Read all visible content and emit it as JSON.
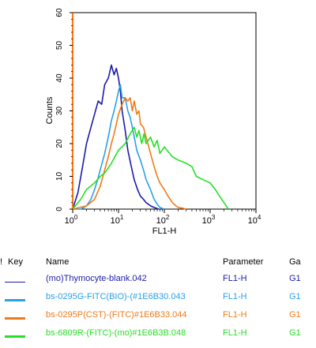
{
  "chart_data": {
    "type": "line",
    "title": "",
    "xlabel": "FL1-H",
    "ylabel": "Counts",
    "x_scale": "log",
    "xlim": [
      1,
      10000
    ],
    "ylim": [
      0,
      60
    ],
    "x_ticks": [
      1,
      10,
      100,
      1000,
      10000
    ],
    "x_tick_labels": [
      {
        "base": "10",
        "exp": "0"
      },
      {
        "base": "10",
        "exp": "1"
      },
      {
        "base": "10",
        "exp": "2"
      },
      {
        "base": "10",
        "exp": "3"
      },
      {
        "base": "10",
        "exp": "4"
      }
    ],
    "y_ticks": [
      "0",
      "10",
      "20",
      "30",
      "40",
      "50",
      "60"
    ],
    "grid": false,
    "series": [
      {
        "name": "(mo)Thymocyte-blank.042",
        "color": "#1c1ca8",
        "x": [
          1,
          1,
          1.3,
          1.6,
          2,
          2.5,
          3,
          3.6,
          4.3,
          5,
          6,
          7,
          8,
          9,
          10,
          11,
          12,
          14,
          16,
          19,
          22,
          26,
          30,
          35,
          40,
          50,
          60,
          75
        ],
        "y": [
          60,
          0,
          5,
          12,
          20,
          25,
          29,
          33,
          32,
          38,
          40,
          44,
          41,
          43,
          40,
          36,
          30,
          24,
          18,
          13,
          9,
          6,
          4,
          3,
          2,
          1,
          0.5,
          0
        ]
      },
      {
        "name": "bs-0295G-FITC(BIO)-(#1E6B30.043",
        "color": "#2aa0e6",
        "x": [
          1,
          1.5,
          2,
          2.5,
          3,
          3.5,
          4,
          5,
          6,
          7,
          8,
          9,
          10,
          11,
          12,
          14,
          16,
          18,
          20,
          22,
          25,
          30,
          35,
          40,
          50,
          60,
          70,
          80,
          100
        ],
        "y": [
          0,
          0,
          1,
          3,
          6,
          9,
          12,
          17,
          22,
          27,
          30,
          33,
          36,
          38,
          34,
          34,
          30,
          28,
          25,
          22,
          18,
          15,
          12,
          9,
          6,
          3,
          1.5,
          0.5,
          0
        ]
      },
      {
        "name": "bs-0295P(CST)-(FITC)#1E6B33.044",
        "color": "#f07a1a",
        "x": [
          1,
          2,
          3,
          4,
          5,
          6,
          7,
          8,
          9,
          10,
          12,
          14,
          16,
          18,
          20,
          22,
          25,
          28,
          30,
          35,
          40,
          50,
          60,
          70,
          80,
          100,
          120,
          150,
          180,
          200,
          250,
          300
        ],
        "y": [
          0,
          1,
          3,
          7,
          12,
          16,
          20,
          23,
          26,
          29,
          32,
          34,
          33,
          34,
          30,
          33,
          29,
          30,
          26,
          25,
          22,
          17,
          13,
          10,
          8,
          6,
          4,
          2,
          1,
          0.5,
          0.3,
          0
        ]
      },
      {
        "name": "bs-6809R-(FITC)-(mo)#1E6B3B.048",
        "color": "#26e026",
        "x": [
          1,
          1,
          1.5,
          2,
          3,
          4,
          5,
          7,
          10,
          14,
          18,
          22,
          25,
          28,
          32,
          36,
          40,
          50,
          60,
          70,
          80,
          100,
          150,
          200,
          300,
          400,
          500,
          700,
          1000,
          1300,
          1600,
          2000,
          2500
        ],
        "y": [
          41,
          0,
          3,
          6,
          8,
          10,
          11,
          14,
          18,
          20,
          23,
          25,
          22,
          24,
          20,
          23,
          20,
          22,
          19,
          21,
          17,
          19,
          16,
          15,
          14,
          13,
          10,
          9,
          8,
          6,
          4,
          2,
          0
        ]
      },
      {
        "name": "",
        "color": "#ff7a1a",
        "x": [
          1,
          1
        ],
        "y": [
          60,
          0
        ]
      }
    ]
  },
  "legend": {
    "header": {
      "mark": "!",
      "key": "Key",
      "name": "Name",
      "parameter": "Parameter",
      "gate": "Ga"
    },
    "rows": [
      {
        "name": "(mo)Thymocyte-blank.042",
        "parameter": "FL1-H",
        "gate": "G1",
        "color": "#1c1ca8"
      },
      {
        "name": "bs-0295G-FITC(BIO)-(#1E6B30.043",
        "parameter": "FL1-H",
        "gate": "G1",
        "color": "#2aa0e6"
      },
      {
        "name": "bs-0295P(CST)-(FITC)#1E6B33.044",
        "parameter": "FL1-H",
        "gate": "G1",
        "color": "#f07a1a"
      },
      {
        "name": "bs-6809R-(FITC)-(mo)#1E6B3B.048",
        "parameter": "FL1-H",
        "gate": "G1",
        "color": "#26e026"
      }
    ]
  }
}
